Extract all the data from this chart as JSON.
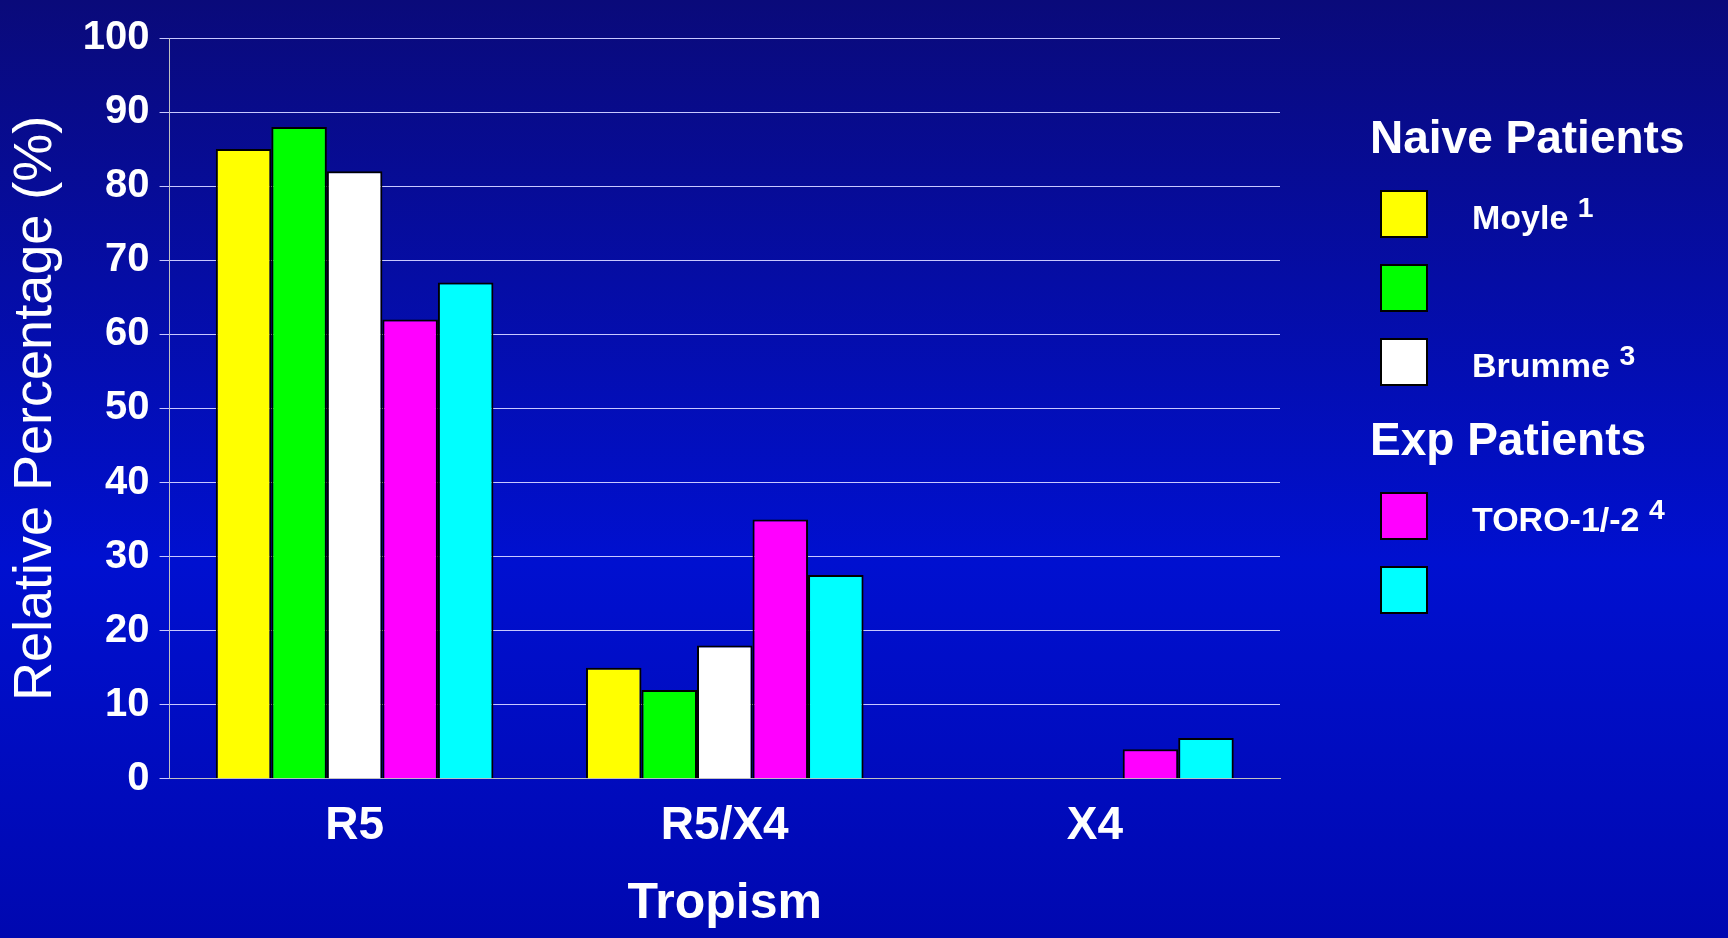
{
  "chart_data": {
    "type": "bar",
    "xlabel": "Tropism",
    "ylabel": "Relative Percentage (%)",
    "categories": [
      "R5",
      "R5/X4",
      "X4"
    ],
    "series": [
      {
        "name": "Moyle $^{1}$",
        "color": "#ffff00",
        "values": [
          85,
          15,
          0
        ]
      },
      {
        "color": "#00ff00",
        "values": [
          88,
          12,
          0
        ]
      },
      {
        "name": "Brumme $^{3}$",
        "color": "#ffffff",
        "values": [
          82,
          18,
          0
        ]
      },
      {
        "name": "TORO-1/-2 $^{4}$",
        "color": "#ff00ff",
        "values": [
          62,
          35,
          4
        ]
      },
      {
        "color": "#00ffff",
        "values": [
          67,
          27.5,
          5.5
        ]
      }
    ],
    "ylim": [
      0,
      100
    ],
    "yticks": [
      0,
      10,
      20,
      30,
      40,
      50,
      60,
      70,
      80,
      90,
      100
    ],
    "grid": "y",
    "legend": "right",
    "legend_title": "Naive Patients",
    "annotations": [
      "Exp Patients"
    ]
  }
}
